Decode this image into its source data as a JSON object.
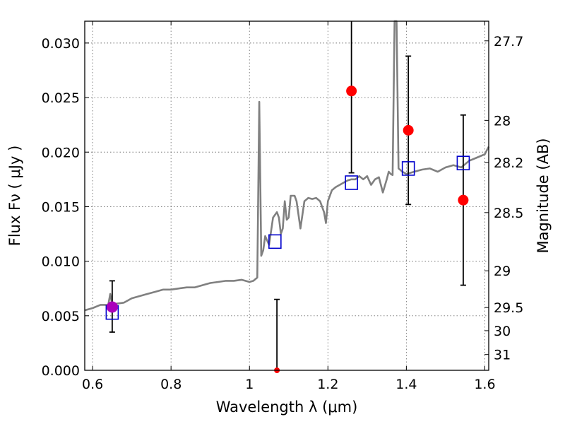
{
  "chart_data": {
    "type": "scatter",
    "xlabel": "Wavelength  λ (μm)",
    "ylabel": "Flux  Fν  ( μJy )",
    "ylabel_right": "Magnitude (AB)",
    "xlim": [
      0.58,
      1.61
    ],
    "ylim": [
      0.0,
      0.032
    ],
    "grid": true,
    "x_ticks": [
      "0.6",
      "0.8",
      "1",
      "1.2",
      "1.4",
      "1.6"
    ],
    "x_tick_values": [
      0.6,
      0.8,
      1.0,
      1.2,
      1.4,
      1.6
    ],
    "y_ticks": [
      "0.000",
      "0.005",
      "0.010",
      "0.015",
      "0.020",
      "0.025",
      "0.030"
    ],
    "y_tick_values": [
      0.0,
      0.005,
      0.01,
      0.015,
      0.02,
      0.025,
      0.03
    ],
    "right_ticks": [
      "27.7",
      "28",
      "28.2",
      "28.5",
      "29",
      "29.5",
      "30",
      "31"
    ],
    "right_tick_values": [
      27.7,
      28.0,
      28.2,
      28.5,
      29.0,
      29.5,
      30.0,
      31.0
    ],
    "spectrum": {
      "color": "#808080",
      "x": [
        0.58,
        0.6,
        0.62,
        0.64,
        0.645,
        0.65,
        0.66,
        0.68,
        0.7,
        0.72,
        0.74,
        0.76,
        0.78,
        0.8,
        0.82,
        0.84,
        0.86,
        0.88,
        0.9,
        0.92,
        0.94,
        0.96,
        0.98,
        1.0,
        1.01,
        1.02,
        1.025,
        1.03,
        1.035,
        1.04,
        1.05,
        1.06,
        1.07,
        1.075,
        1.08,
        1.085,
        1.09,
        1.095,
        1.1,
        1.105,
        1.11,
        1.115,
        1.12,
        1.13,
        1.14,
        1.15,
        1.16,
        1.17,
        1.18,
        1.19,
        1.195,
        1.2,
        1.21,
        1.22,
        1.23,
        1.24,
        1.25,
        1.26,
        1.27,
        1.28,
        1.29,
        1.3,
        1.31,
        1.32,
        1.33,
        1.34,
        1.35,
        1.355,
        1.36,
        1.365,
        1.37,
        1.375,
        1.38,
        1.39,
        1.4,
        1.41,
        1.42,
        1.44,
        1.46,
        1.48,
        1.5,
        1.52,
        1.54,
        1.56,
        1.58,
        1.6,
        1.61
      ],
      "y": [
        0.0055,
        0.0057,
        0.006,
        0.006,
        0.007,
        0.006,
        0.0061,
        0.0062,
        0.0066,
        0.0068,
        0.007,
        0.0072,
        0.0074,
        0.0074,
        0.0075,
        0.0076,
        0.0076,
        0.0078,
        0.008,
        0.0081,
        0.0082,
        0.0082,
        0.0083,
        0.0081,
        0.0082,
        0.0085,
        0.0246,
        0.0105,
        0.011,
        0.0123,
        0.0115,
        0.014,
        0.0145,
        0.014,
        0.0125,
        0.013,
        0.0155,
        0.0138,
        0.014,
        0.016,
        0.016,
        0.016,
        0.0155,
        0.013,
        0.0155,
        0.0158,
        0.0157,
        0.0158,
        0.0155,
        0.0145,
        0.0135,
        0.0155,
        0.0165,
        0.0168,
        0.017,
        0.0172,
        0.0174,
        0.0175,
        0.0175,
        0.0178,
        0.0175,
        0.0178,
        0.017,
        0.0175,
        0.0177,
        0.0163,
        0.0175,
        0.0182,
        0.018,
        0.0179,
        0.032,
        0.032,
        0.0185,
        0.0182,
        0.018,
        0.0181,
        0.0182,
        0.0184,
        0.0185,
        0.0182,
        0.0186,
        0.0188,
        0.0186,
        0.0192,
        0.0195,
        0.0198,
        0.0205
      ]
    },
    "model_bands": {
      "color": "#0000cc",
      "x": [
        0.65,
        1.065,
        1.26,
        1.405,
        1.545
      ],
      "y": [
        0.0053,
        0.0118,
        0.0172,
        0.0185,
        0.019
      ]
    },
    "detections": {
      "color": "#ff0000",
      "x": [
        1.26,
        1.405,
        1.545
      ],
      "y": [
        0.0256,
        0.022,
        0.0156
      ],
      "yerr_low": [
        0.0181,
        0.0152,
        0.0078
      ],
      "yerr_high": [
        0.032,
        0.0288,
        0.0234
      ]
    },
    "highlighted_point": {
      "color": "#aa00bb",
      "x": 0.65,
      "y": 0.0058,
      "yerr_low": 0.0035,
      "yerr_high": 0.0082
    },
    "nondetection": {
      "color": "#ff0000",
      "x": 1.07,
      "y": 0.0,
      "yerr_low": 0.0,
      "yerr_high": 0.0065
    }
  }
}
